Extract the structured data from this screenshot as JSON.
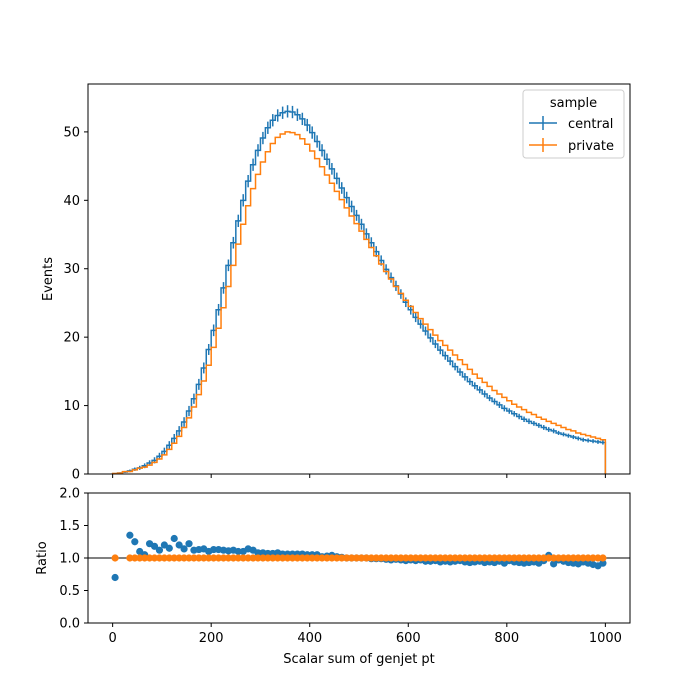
{
  "chart_data": [
    {
      "type": "line",
      "subtype": "step-histogram",
      "xlabel": "",
      "ylabel": "Events",
      "xlim": [
        -50,
        1050
      ],
      "ylim": [
        0,
        57
      ],
      "yticks": [
        0,
        10,
        20,
        30,
        40,
        50
      ],
      "grid": false,
      "legend": {
        "title": "sample",
        "placement": "top-right"
      },
      "colors": {
        "central": "#1f77b4",
        "private": "#ff7f0e"
      },
      "series_x": [
        5,
        15,
        25,
        35,
        45,
        55,
        65,
        75,
        85,
        95,
        105,
        115,
        125,
        135,
        145,
        155,
        165,
        175,
        185,
        195,
        205,
        215,
        225,
        235,
        245,
        255,
        265,
        275,
        285,
        295,
        305,
        315,
        325,
        335,
        345,
        355,
        365,
        375,
        385,
        395,
        405,
        415,
        425,
        435,
        445,
        455,
        465,
        475,
        485,
        495,
        505,
        515,
        525,
        535,
        545,
        555,
        565,
        575,
        585,
        595,
        605,
        615,
        625,
        635,
        645,
        655,
        665,
        675,
        685,
        695,
        705,
        715,
        725,
        735,
        745,
        755,
        765,
        775,
        785,
        795,
        805,
        815,
        825,
        835,
        845,
        855,
        865,
        875,
        885,
        895,
        905,
        915,
        925,
        935,
        945,
        955,
        965,
        975,
        985,
        995
      ],
      "series": [
        {
          "name": "central",
          "values": [
            0.05,
            0.15,
            0.3,
            0.45,
            0.7,
            0.9,
            1.2,
            1.6,
            2.0,
            2.6,
            3.3,
            4.2,
            5.2,
            6.3,
            7.6,
            9.2,
            11.0,
            13.1,
            15.5,
            18.2,
            21.0,
            24.0,
            27.2,
            30.5,
            33.8,
            37.0,
            40.0,
            42.8,
            45.2,
            47.3,
            49.1,
            50.6,
            51.7,
            52.4,
            52.8,
            53.0,
            52.9,
            52.5,
            51.9,
            51.0,
            49.9,
            48.6,
            47.3,
            46.0,
            44.6,
            43.2,
            41.8,
            40.4,
            39.1,
            37.8,
            36.5,
            35.1,
            33.8,
            32.5,
            31.2,
            29.9,
            28.7,
            27.5,
            26.3,
            25.1,
            24.0,
            22.9,
            21.9,
            20.9,
            19.9,
            19.0,
            18.1,
            17.3,
            16.5,
            15.7,
            14.9,
            14.2,
            13.5,
            12.9,
            12.3,
            11.7,
            11.1,
            10.6,
            10.1,
            9.6,
            9.2,
            8.8,
            8.4,
            8.0,
            7.7,
            7.4,
            7.1,
            6.8,
            6.5,
            6.3,
            6.0,
            5.8,
            5.6,
            5.4,
            5.2,
            5.0,
            4.9,
            4.8,
            4.7,
            4.6
          ],
          "errors": [
            0.05,
            0.1,
            0.15,
            0.2,
            0.25,
            0.3,
            0.35,
            0.4,
            0.45,
            0.5,
            0.55,
            0.6,
            0.65,
            0.7,
            0.7,
            0.75,
            0.75,
            0.8,
            0.8,
            0.8,
            0.85,
            0.85,
            0.85,
            0.85,
            0.85,
            0.9,
            0.9,
            0.9,
            0.9,
            0.9,
            0.9,
            0.9,
            0.9,
            0.9,
            0.9,
            0.9,
            0.9,
            0.9,
            0.9,
            0.9,
            0.9,
            0.9,
            0.9,
            0.85,
            0.85,
            0.85,
            0.85,
            0.85,
            0.85,
            0.8,
            0.8,
            0.8,
            0.8,
            0.8,
            0.75,
            0.75,
            0.75,
            0.75,
            0.7,
            0.7,
            0.7,
            0.7,
            0.65,
            0.65,
            0.65,
            0.6,
            0.6,
            0.6,
            0.6,
            0.55,
            0.55,
            0.55,
            0.5,
            0.5,
            0.5,
            0.5,
            0.45,
            0.45,
            0.45,
            0.45,
            0.4,
            0.4,
            0.4,
            0.4,
            0.4,
            0.35,
            0.35,
            0.35,
            0.35,
            0.35,
            0.3,
            0.3,
            0.3,
            0.3,
            0.3,
            0.3,
            0.3,
            0.3,
            0.3,
            0.3
          ]
        },
        {
          "name": "private",
          "values": [
            0.07,
            0.12,
            0.35,
            0.36,
            0.6,
            0.85,
            1.0,
            1.3,
            1.7,
            2.2,
            2.8,
            3.6,
            4.5,
            5.5,
            6.8,
            8.2,
            9.8,
            11.6,
            13.6,
            15.9,
            18.5,
            21.3,
            24.3,
            27.4,
            30.5,
            33.6,
            36.5,
            39.2,
            41.7,
            43.8,
            45.6,
            47.1,
            48.3,
            49.2,
            49.7,
            50.0,
            49.9,
            49.6,
            49.0,
            48.2,
            47.2,
            46.1,
            44.9,
            43.7,
            42.5,
            41.3,
            40.1,
            38.9,
            37.7,
            36.6,
            35.5,
            34.3,
            33.1,
            31.9,
            30.7,
            29.6,
            28.5,
            27.4,
            26.4,
            25.4,
            24.5,
            23.6,
            22.7,
            21.9,
            21.1,
            20.3,
            19.5,
            18.8,
            18.1,
            17.4,
            16.7,
            16.0,
            15.3,
            14.6,
            14.0,
            13.4,
            12.8,
            12.2,
            11.7,
            11.2,
            10.7,
            10.2,
            9.8,
            9.4,
            9.0,
            8.7,
            8.3,
            8.0,
            7.7,
            7.4,
            7.1,
            6.8,
            6.5,
            6.3,
            6.0,
            5.8,
            5.6,
            5.4,
            5.2,
            5.0
          ]
        }
      ]
    },
    {
      "type": "scatter",
      "xlabel": "Scalar sum of genjet pt",
      "ylabel": "Ratio",
      "xlim": [
        -50,
        1050
      ],
      "ylim": [
        0.0,
        2.0
      ],
      "xticks": [
        0,
        200,
        400,
        600,
        800,
        1000
      ],
      "yticks": [
        "0.0",
        "0.5",
        "1.0",
        "1.5",
        "2.0"
      ],
      "reference_line": 1.0,
      "grid": false,
      "series": [
        {
          "name": "central",
          "x": [
            5,
            35,
            45,
            55,
            65,
            75,
            85,
            95,
            105,
            115,
            125,
            135,
            145,
            155,
            165,
            175,
            185,
            195,
            205,
            215,
            225,
            235,
            245,
            255,
            265,
            275,
            285,
            295,
            305,
            315,
            325,
            335,
            345,
            355,
            365,
            375,
            385,
            395,
            405,
            415,
            425,
            435,
            445,
            455,
            465,
            475,
            485,
            495,
            505,
            515,
            525,
            535,
            545,
            555,
            565,
            575,
            585,
            595,
            605,
            615,
            625,
            635,
            645,
            655,
            665,
            675,
            685,
            695,
            705,
            715,
            725,
            735,
            745,
            755,
            765,
            775,
            785,
            795,
            805,
            815,
            825,
            835,
            845,
            855,
            865,
            875,
            885,
            895,
            905,
            915,
            925,
            935,
            945,
            955,
            965,
            975,
            985,
            995
          ],
          "values": [
            0.7,
            1.35,
            1.25,
            1.1,
            1.05,
            1.22,
            1.18,
            1.12,
            1.2,
            1.15,
            1.3,
            1.2,
            1.14,
            1.22,
            1.12,
            1.13,
            1.14,
            1.1,
            1.13,
            1.13,
            1.12,
            1.11,
            1.12,
            1.1,
            1.1,
            1.14,
            1.12,
            1.08,
            1.08,
            1.07,
            1.07,
            1.08,
            1.06,
            1.06,
            1.06,
            1.06,
            1.06,
            1.05,
            1.05,
            1.05,
            1.02,
            1.03,
            1.04,
            1.02,
            1.01,
            1.0,
            1.0,
            1.0,
            1.0,
            1.0,
            0.99,
            0.99,
            0.99,
            0.98,
            0.97,
            0.98,
            0.97,
            0.96,
            0.97,
            0.96,
            0.97,
            0.95,
            0.95,
            0.96,
            0.94,
            0.95,
            0.94,
            0.95,
            0.96,
            0.94,
            0.93,
            0.94,
            0.95,
            0.93,
            0.94,
            0.93,
            0.95,
            0.92,
            0.96,
            0.94,
            0.93,
            0.92,
            0.93,
            0.94,
            0.92,
            0.96,
            1.04,
            0.91,
            0.97,
            0.95,
            0.93,
            0.92,
            0.91,
            0.94,
            0.92,
            0.9,
            0.88,
            0.92
          ]
        },
        {
          "name": "private",
          "x": [
            5,
            35,
            45,
            55,
            65,
            75,
            85,
            95,
            105,
            115,
            125,
            135,
            145,
            155,
            165,
            175,
            185,
            195,
            205,
            215,
            225,
            235,
            245,
            255,
            265,
            275,
            285,
            295,
            305,
            315,
            325,
            335,
            345,
            355,
            365,
            375,
            385,
            395,
            405,
            415,
            425,
            435,
            445,
            455,
            465,
            475,
            485,
            495,
            505,
            515,
            525,
            535,
            545,
            555,
            565,
            575,
            585,
            595,
            605,
            615,
            625,
            635,
            645,
            655,
            665,
            675,
            685,
            695,
            705,
            715,
            725,
            735,
            745,
            755,
            765,
            775,
            785,
            795,
            805,
            815,
            825,
            835,
            845,
            855,
            865,
            875,
            885,
            895,
            905,
            915,
            925,
            935,
            945,
            955,
            965,
            975,
            985,
            995
          ],
          "values": [
            1.0,
            1.0,
            1.0,
            1.0,
            1.0,
            1.0,
            1.0,
            1.0,
            1.0,
            1.0,
            1.0,
            1.0,
            1.0,
            1.0,
            1.0,
            1.0,
            1.0,
            1.0,
            1.0,
            1.0,
            1.0,
            1.0,
            1.0,
            1.0,
            1.0,
            1.0,
            1.0,
            1.0,
            1.0,
            1.0,
            1.0,
            1.0,
            1.0,
            1.0,
            1.0,
            1.0,
            1.0,
            1.0,
            1.0,
            1.0,
            1.0,
            1.0,
            1.0,
            1.0,
            1.0,
            1.0,
            1.0,
            1.0,
            1.0,
            1.0,
            1.0,
            1.0,
            1.0,
            1.0,
            1.0,
            1.0,
            1.0,
            1.0,
            1.0,
            1.0,
            1.0,
            1.0,
            1.0,
            1.0,
            1.0,
            1.0,
            1.0,
            1.0,
            1.0,
            1.0,
            1.0,
            1.0,
            1.0,
            1.0,
            1.0,
            1.0,
            1.0,
            1.0,
            1.0,
            1.0,
            1.0,
            1.0,
            1.0,
            1.0,
            1.0,
            1.0,
            1.0,
            1.0,
            1.0,
            1.0,
            1.0,
            1.0,
            1.0,
            1.0,
            1.0,
            1.0,
            1.0,
            1.0
          ]
        }
      ]
    }
  ],
  "legend_items": [
    "central",
    "private"
  ],
  "legend_title": "sample"
}
